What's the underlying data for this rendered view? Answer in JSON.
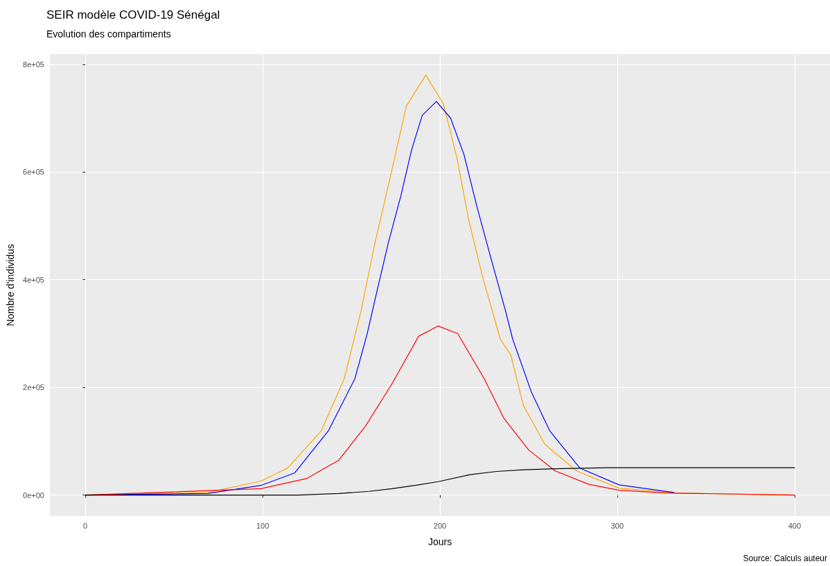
{
  "chart_data": {
    "type": "line",
    "title": "SEIR modèle COVID-19 Sénégal",
    "subtitle": "Evolution des compartiments",
    "xlabel": "Jours",
    "ylabel": "Nombre d'individus",
    "annotations": [
      "Source: Calculs auteur"
    ],
    "xlim": [
      -20,
      420
    ],
    "xticks": [
      0,
      100,
      200,
      300,
      400
    ],
    "ylim": [
      -39000,
      819000
    ],
    "yticks": [
      {
        "value": 0,
        "label": "0e+00"
      },
      {
        "value": 200000,
        "label": "2e+05"
      },
      {
        "value": 400000,
        "label": "4e+05"
      },
      {
        "value": 600000,
        "label": "6e+05"
      },
      {
        "value": 800000,
        "label": "8e+05"
      }
    ],
    "grid": true,
    "marker": "none",
    "line_style": "solid",
    "series": [
      {
        "color": "#ffa500",
        "x": [
          0,
          69,
          99,
          114,
          133,
          146,
          155.5,
          163,
          172.5,
          181,
          192,
          202,
          210,
          216,
          224,
          234,
          240,
          247,
          259,
          277,
          301,
          333,
          400
        ],
        "values": [
          0,
          5000,
          26000,
          50000,
          119000,
          216000,
          342000,
          463000,
          598000,
          722000,
          780000,
          726000,
          620000,
          514000,
          406000,
          290000,
          260000,
          167000,
          95000,
          45000,
          13000,
          4000,
          0
        ]
      },
      {
        "color": "#0000ff",
        "x": [
          0,
          69,
          99,
          118,
          137,
          152,
          159,
          165,
          171,
          178,
          184,
          190,
          198,
          206,
          213.5,
          221,
          229,
          237,
          241,
          251.5,
          262,
          279,
          301,
          332
        ],
        "values": [
          0,
          3000,
          18000,
          41000,
          119000,
          216000,
          300000,
          386000,
          470000,
          556000,
          641000,
          705000,
          731000,
          700000,
          633000,
          534000,
          437000,
          342000,
          290000,
          192000,
          119000,
          50000,
          19000,
          5000
        ]
      },
      {
        "color": "#ff0000",
        "x": [
          0,
          99,
          125,
          143,
          158,
          173,
          188,
          199,
          210,
          225,
          236,
          250,
          265,
          284,
          301,
          327,
          400
        ],
        "values": [
          0,
          12000,
          31000,
          65000,
          128000,
          207000,
          295000,
          314000,
          300000,
          216000,
          143000,
          84000,
          45000,
          20000,
          9000,
          4000,
          0
        ]
      },
      {
        "color": "#000000",
        "x": [
          0,
          120,
          143,
          160,
          173,
          186,
          199,
          217,
          232,
          247,
          265,
          295,
          400
        ],
        "values": [
          0,
          0,
          3000,
          7000,
          12000,
          18000,
          25000,
          38000,
          44000,
          47000,
          49000,
          51000,
          51000
        ]
      }
    ]
  }
}
